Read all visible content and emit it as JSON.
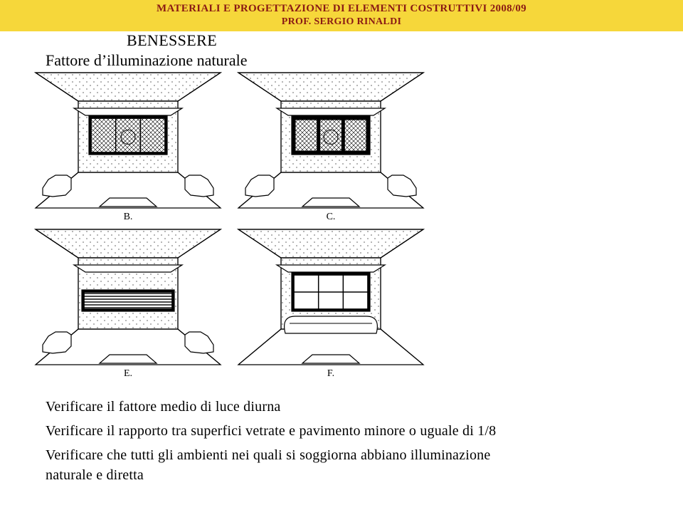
{
  "colors": {
    "banner_bg": "#f6d73a",
    "banner_fg": "#8a1a14",
    "text": "#000000",
    "page_bg": "#ffffff",
    "stroke": "#000000"
  },
  "header": {
    "course": "MATERIALI E PROGETTAZIONE DI ELEMENTI COSTRUTTIVI 2008/09",
    "prof": "PROF. SERGIO RINALDI"
  },
  "title": {
    "line1": "BENESSERE",
    "line2": "Fattore d’illuminazione naturale"
  },
  "figure": {
    "type": "diagram",
    "background": "#ffffff",
    "panels": [
      {
        "id": "B",
        "window_frame": "thin",
        "pane_rows": 1,
        "pane_cols": 3,
        "pane_fill": "crosshatch",
        "furniture": "chairs",
        "overhang": true
      },
      {
        "id": "C",
        "window_frame": "heavy",
        "pane_rows": 1,
        "pane_cols": 3,
        "pane_fill": "crosshatch",
        "furniture": "chairs",
        "overhang": true
      },
      {
        "id": "E",
        "window_frame": "thin",
        "pane_rows": 1,
        "pane_cols": 1,
        "pane_fill": "stripes",
        "furniture": "chairs",
        "overhang": true,
        "window_shape": "letterbox"
      },
      {
        "id": "F",
        "window_frame": "thin",
        "pane_rows": 2,
        "pane_cols": 3,
        "pane_fill": "none",
        "furniture": "bench",
        "overhang": true
      }
    ],
    "panel_labels": {
      "B": "B.",
      "C": "C.",
      "E": "E.",
      "F": "F."
    },
    "stroke_width": 1.2
  },
  "body": {
    "line1": "Verificare il fattore medio di luce diurna",
    "line2": "Verificare il rapporto tra superfici vetrate e pavimento  minore o uguale di 1/8",
    "line3": "Verificare che tutti gli ambienti nei quali si soggiorna abbiano illuminazione",
    "line4": "naturale e diretta"
  }
}
